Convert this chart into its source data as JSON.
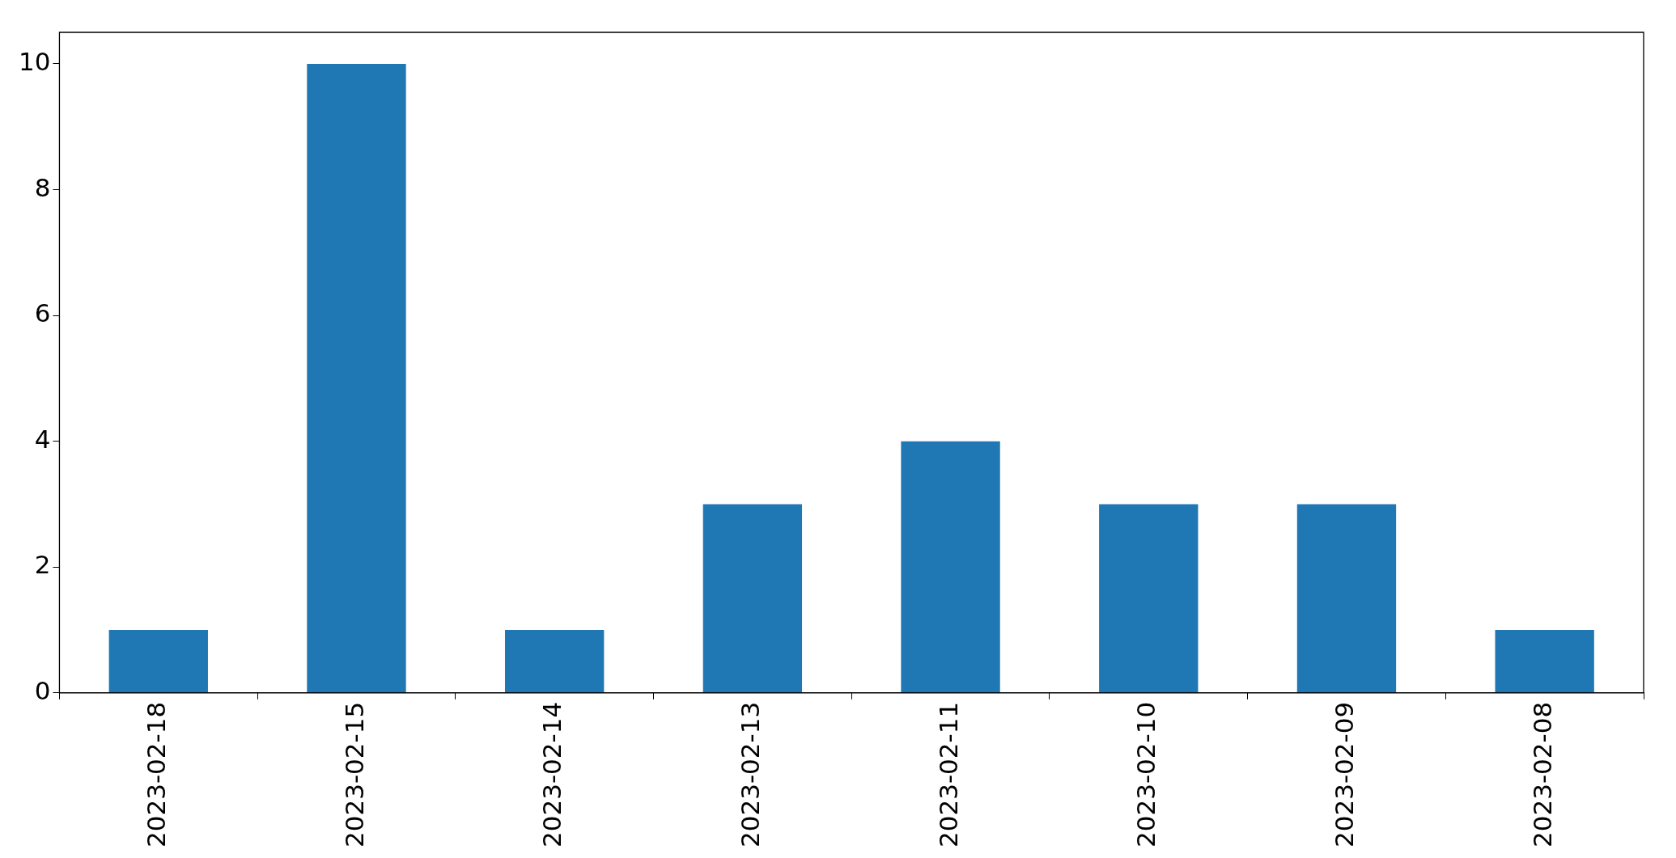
{
  "chart_data": {
    "type": "bar",
    "categories": [
      "2023-02-18",
      "2023-02-15",
      "2023-02-14",
      "2023-02-13",
      "2023-02-11",
      "2023-02-10",
      "2023-02-09",
      "2023-02-08"
    ],
    "values": [
      1,
      10,
      1,
      3,
      4,
      3,
      3,
      1
    ],
    "color": "#1f77b4",
    "ylim": [
      0,
      10.5
    ],
    "yticks": [
      0,
      2,
      4,
      6,
      8,
      10
    ]
  }
}
